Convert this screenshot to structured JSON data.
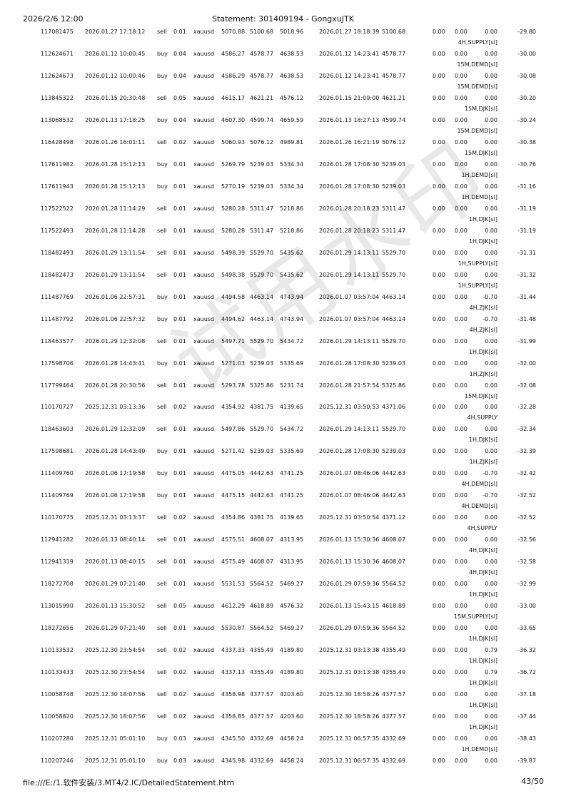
{
  "header": {
    "datetime": "2026/2/6 12:00",
    "title": "Statement: 301409194 - GongxuJTK"
  },
  "footer": {
    "path": "file:///E:/1.软件安装/3.MT4/2.IC/DetailedStatement.htm",
    "page": "43/50"
  },
  "watermark": "试用水印",
  "rows": [
    {
      "ticket": "117081475",
      "open_time": "2026.01.27 17:18:12",
      "type": "sell",
      "size": "0.01",
      "symbol": "xauusd",
      "price": "5070.88",
      "sl": "5100.68",
      "tp": "5018.96",
      "close_time": "2026.01.27 18:18:39",
      "close_price": "5100.68",
      "commission": "0.00",
      "taxes": "0.00",
      "swap": "0.00",
      "profit": "-29.80",
      "comment": "4H,SUPPLY[sl]"
    },
    {
      "ticket": "112624671",
      "open_time": "2026.01.12 10:00:45",
      "type": "buy",
      "size": "0.04",
      "symbol": "xauusd",
      "price": "4586.27",
      "sl": "4578.77",
      "tp": "4638.53",
      "close_time": "2026.01.12 14:23:41",
      "close_price": "4578.77",
      "commission": "0.00",
      "taxes": "0.00",
      "swap": "0.00",
      "profit": "-30.00",
      "comment": "15M,DEMD[sl]"
    },
    {
      "ticket": "112624673",
      "open_time": "2026.01.12 10:00:46",
      "type": "buy",
      "size": "0.04",
      "symbol": "xauusd",
      "price": "4586.29",
      "sl": "4578.77",
      "tp": "4638.53",
      "close_time": "2026.01.12 14:23:41",
      "close_price": "4578.77",
      "commission": "0.00",
      "taxes": "0.00",
      "swap": "0.00",
      "profit": "-30.08",
      "comment": "15M,DEMD[sl]"
    },
    {
      "ticket": "113845322",
      "open_time": "2026.01.15 20:30:48",
      "type": "sell",
      "size": "0.05",
      "symbol": "xauusd",
      "price": "4615.17",
      "sl": "4621.21",
      "tp": "4576.12",
      "close_time": "2026.01.15 21:09:00",
      "close_price": "4621.21",
      "commission": "0.00",
      "taxes": "0.00",
      "swap": "0.00",
      "profit": "-30.20",
      "comment": "15M,DJK[sl]"
    },
    {
      "ticket": "113068532",
      "open_time": "2026.01.13 17:18:25",
      "type": "buy",
      "size": "0.04",
      "symbol": "xauusd",
      "price": "4607.30",
      "sl": "4599.74",
      "tp": "4659.59",
      "close_time": "2026.01.13 18:27:13",
      "close_price": "4599.74",
      "commission": "0.00",
      "taxes": "0.00",
      "swap": "0.00",
      "profit": "-30.24",
      "comment": "15M,DEMD[sl]"
    },
    {
      "ticket": "116428498",
      "open_time": "2026.01.26 16:01:11",
      "type": "sell",
      "size": "0.02",
      "symbol": "xauusd",
      "price": "5060.93",
      "sl": "5076.12",
      "tp": "4989.81",
      "close_time": "2026.01.26 16:21:19",
      "close_price": "5076.12",
      "commission": "0.00",
      "taxes": "0.00",
      "swap": "0.00",
      "profit": "-30.38",
      "comment": "15M,DJK[sl]"
    },
    {
      "ticket": "117611982",
      "open_time": "2026.01.28 15:12:13",
      "type": "buy",
      "size": "0.01",
      "symbol": "xauusd",
      "price": "5269.79",
      "sl": "5239.03",
      "tp": "5334.34",
      "close_time": "2026.01.28 17:08:30",
      "close_price": "5239.03",
      "commission": "0.00",
      "taxes": "0.00",
      "swap": "0.00",
      "profit": "-30.76",
      "comment": "1H,DEMD[sl]"
    },
    {
      "ticket": "117611943",
      "open_time": "2026.01.28 15:12:13",
      "type": "buy",
      "size": "0.01",
      "symbol": "xauusd",
      "price": "5270.19",
      "sl": "5239.03",
      "tp": "5334.34",
      "close_time": "2026.01.28 17:08:30",
      "close_price": "5239.03",
      "commission": "0.00",
      "taxes": "0.00",
      "swap": "0.00",
      "profit": "-31.16",
      "comment": "1H,DEMD[sl]"
    },
    {
      "ticket": "117522522",
      "open_time": "2026.01.28 11:14:29",
      "type": "sell",
      "size": "0.01",
      "symbol": "xauusd",
      "price": "5280.28",
      "sl": "5311.47",
      "tp": "5218.86",
      "close_time": "2026.01.28 20:18:23",
      "close_price": "5311.47",
      "commission": "0.00",
      "taxes": "0.00",
      "swap": "0.00",
      "profit": "-31.19",
      "comment": "1H,DJK[sl]"
    },
    {
      "ticket": "117522493",
      "open_time": "2026.01.28 11:14:28",
      "type": "sell",
      "size": "0.01",
      "symbol": "xauusd",
      "price": "5280.28",
      "sl": "5311.47",
      "tp": "5218.86",
      "close_time": "2026.01.28 20:18:23",
      "close_price": "5311.47",
      "commission": "0.00",
      "taxes": "0.00",
      "swap": "0.00",
      "profit": "-31.19",
      "comment": "1H,DJK[sl]"
    },
    {
      "ticket": "118482493",
      "open_time": "2026.01.29 13:11:54",
      "type": "sell",
      "size": "0.01",
      "symbol": "xauusd",
      "price": "5498.39",
      "sl": "5529.70",
      "tp": "5435.62",
      "close_time": "2026.01.29 14:13:11",
      "close_price": "5529.70",
      "commission": "0.00",
      "taxes": "0.00",
      "swap": "0.00",
      "profit": "-31.31",
      "comment": "1H,SUPPLY[sl]"
    },
    {
      "ticket": "118482473",
      "open_time": "2026.01.29 13:11:54",
      "type": "sell",
      "size": "0.01",
      "symbol": "xauusd",
      "price": "5498.38",
      "sl": "5529.70",
      "tp": "5435.62",
      "close_time": "2026.01.29 14:13:11",
      "close_price": "5529.70",
      "commission": "0.00",
      "taxes": "0.00",
      "swap": "0.00",
      "profit": "-31.32",
      "comment": "1H,SUPPLY[sl]"
    },
    {
      "ticket": "111487769",
      "open_time": "2026.01.06 22:57:31",
      "type": "buy",
      "size": "0.01",
      "symbol": "xauusd",
      "price": "4494.58",
      "sl": "4463.14",
      "tp": "4743.94",
      "close_time": "2026.01.07 03:57:04",
      "close_price": "4463.14",
      "commission": "0.00",
      "taxes": "0.00",
      "swap": "-0.70",
      "profit": "-31.44",
      "comment": "4H,ZJK[sl]"
    },
    {
      "ticket": "111487792",
      "open_time": "2026.01.06 22:57:32",
      "type": "buy",
      "size": "0.01",
      "symbol": "xauusd",
      "price": "4494.62",
      "sl": "4463.14",
      "tp": "4743.94",
      "close_time": "2026.01.07 03:57:04",
      "close_price": "4463.14",
      "commission": "0.00",
      "taxes": "0.00",
      "swap": "-0.70",
      "profit": "-31.48",
      "comment": "4H,ZJK[sl]"
    },
    {
      "ticket": "118463577",
      "open_time": "2026.01.29 12:32:08",
      "type": "sell",
      "size": "0.01",
      "symbol": "xauusd",
      "price": "5497.71",
      "sl": "5529.70",
      "tp": "5434.72",
      "close_time": "2026.01.29 14:13:11",
      "close_price": "5529.70",
      "commission": "0.00",
      "taxes": "0.00",
      "swap": "0.00",
      "profit": "-31.99",
      "comment": "1H,DJK[sl]"
    },
    {
      "ticket": "117598706",
      "open_time": "2026.01.28 14:43:41",
      "type": "buy",
      "size": "0.01",
      "symbol": "xauusd",
      "price": "5271.03",
      "sl": "5239.03",
      "tp": "5335.69",
      "close_time": "2026.01.28 17:08:30",
      "close_price": "5239.03",
      "commission": "0.00",
      "taxes": "0.00",
      "swap": "0.00",
      "profit": "-32.00",
      "comment": "1H,ZJK[sl]"
    },
    {
      "ticket": "117799464",
      "open_time": "2026.01.28 20:30:56",
      "type": "sell",
      "size": "0.01",
      "symbol": "xauusd",
      "price": "5293.78",
      "sl": "5325.86",
      "tp": "5231.74",
      "close_time": "2026.01.28 21:57:54",
      "close_price": "5325.86",
      "commission": "0.00",
      "taxes": "0.00",
      "swap": "0.00",
      "profit": "-32.08",
      "comment": "15M,DJK[sl]"
    },
    {
      "ticket": "110170727",
      "open_time": "2025.12.31 03:13:36",
      "type": "sell",
      "size": "0.02",
      "symbol": "xauusd",
      "price": "4354.92",
      "sl": "4381.75",
      "tp": "4139.65",
      "close_time": "2025.12.31 03:50:53",
      "close_price": "4371.06",
      "commission": "0.00",
      "taxes": "0.00",
      "swap": "0.00",
      "profit": "-32.28",
      "comment": "4H,SUPPLY"
    },
    {
      "ticket": "118463603",
      "open_time": "2026.01.29 12:32:09",
      "type": "sell",
      "size": "0.01",
      "symbol": "xauusd",
      "price": "5497.86",
      "sl": "5529.70",
      "tp": "5434.72",
      "close_time": "2026.01.29 14:13:11",
      "close_price": "5529.70",
      "commission": "0.00",
      "taxes": "0.00",
      "swap": "0.00",
      "profit": "-32.34",
      "comment": "1H,DJK[sl]"
    },
    {
      "ticket": "117598681",
      "open_time": "2026.01.28 14:43:40",
      "type": "buy",
      "size": "0.01",
      "symbol": "xauusd",
      "price": "5271.42",
      "sl": "5239.03",
      "tp": "5335.69",
      "close_time": "2026.01.28 17:08:30",
      "close_price": "5239.03",
      "commission": "0.00",
      "taxes": "0.00",
      "swap": "0.00",
      "profit": "-32.39",
      "comment": "1H,ZJK[sl]"
    },
    {
      "ticket": "111409760",
      "open_time": "2026.01.06 17:19:58",
      "type": "buy",
      "size": "0.01",
      "symbol": "xauusd",
      "price": "4475.05",
      "sl": "4442.63",
      "tp": "4741.25",
      "close_time": "2026.01.07 08:46:06",
      "close_price": "4442.63",
      "commission": "0.00",
      "taxes": "0.00",
      "swap": "-0.70",
      "profit": "-32.42",
      "comment": "4H,DEMD[sl]"
    },
    {
      "ticket": "111409769",
      "open_time": "2026.01.06 17:19:58",
      "type": "buy",
      "size": "0.01",
      "symbol": "xauusd",
      "price": "4475.15",
      "sl": "4442.63",
      "tp": "4741.25",
      "close_time": "2026.01.07 08:46:06",
      "close_price": "4442.63",
      "commission": "0.00",
      "taxes": "0.00",
      "swap": "-0.70",
      "profit": "-32.52",
      "comment": "4H,DEMD[sl]"
    },
    {
      "ticket": "110170775",
      "open_time": "2025.12.31 03:13:37",
      "type": "sell",
      "size": "0.02",
      "symbol": "xauusd",
      "price": "4354.86",
      "sl": "4381.75",
      "tp": "4139.65",
      "close_time": "2025.12.31 03:50:54",
      "close_price": "4371.12",
      "commission": "0.00",
      "taxes": "0.00",
      "swap": "0.00",
      "profit": "-32.52",
      "comment": "4H,SUPPLY"
    },
    {
      "ticket": "112941282",
      "open_time": "2026.01.13 08:40:14",
      "type": "sell",
      "size": "0.01",
      "symbol": "xauusd",
      "price": "4575.51",
      "sl": "4608.07",
      "tp": "4313.95",
      "close_time": "2026.01.13 15:30:36",
      "close_price": "4608.07",
      "commission": "0.00",
      "taxes": "0.00",
      "swap": "0.00",
      "profit": "-32.56",
      "comment": "4H,DJK[sl]"
    },
    {
      "ticket": "112941319",
      "open_time": "2026.01.13 08:40:15",
      "type": "sell",
      "size": "0.01",
      "symbol": "xauusd",
      "price": "4575.49",
      "sl": "4608.07",
      "tp": "4313.95",
      "close_time": "2026.01.13 15:30:36",
      "close_price": "4608.07",
      "commission": "0.00",
      "taxes": "0.00",
      "swap": "0.00",
      "profit": "-32.58",
      "comment": "4H,DJK[sl]"
    },
    {
      "ticket": "118272708",
      "open_time": "2026.01.29 07:21:40",
      "type": "sell",
      "size": "0.01",
      "symbol": "xauusd",
      "price": "5531.53",
      "sl": "5564.52",
      "tp": "5469.27",
      "close_time": "2026.01.29 07:59:36",
      "close_price": "5564.52",
      "commission": "0.00",
      "taxes": "0.00",
      "swap": "0.00",
      "profit": "-32.99",
      "comment": "1H,DJK[sl]"
    },
    {
      "ticket": "113015990",
      "open_time": "2026.01.13 15:30:52",
      "type": "sell",
      "size": "0.05",
      "symbol": "xauusd",
      "price": "4612.29",
      "sl": "4618.89",
      "tp": "4576.32",
      "close_time": "2026.01.13 15:43:15",
      "close_price": "4618.89",
      "commission": "0.00",
      "taxes": "0.00",
      "swap": "0.00",
      "profit": "-33.00",
      "comment": "15M,SUPPLY[sl]"
    },
    {
      "ticket": "118272656",
      "open_time": "2026.01.29 07:21:40",
      "type": "sell",
      "size": "0.01",
      "symbol": "xauusd",
      "price": "5530.87",
      "sl": "5564.52",
      "tp": "5469.27",
      "close_time": "2026.01.29 07:59:36",
      "close_price": "5564.52",
      "commission": "0.00",
      "taxes": "0.00",
      "swap": "0.00",
      "profit": "-33.65",
      "comment": "1H,DJK[sl]"
    },
    {
      "ticket": "110133532",
      "open_time": "2025.12.30 23:54:54",
      "type": "sell",
      "size": "0.02",
      "symbol": "xauusd",
      "price": "4337.33",
      "sl": "4355.49",
      "tp": "4189.80",
      "close_time": "2025.12.31 03:13:38",
      "close_price": "4355.49",
      "commission": "0.00",
      "taxes": "0.00",
      "swap": "0.79",
      "profit": "-36.32",
      "comment": "1H,DJK[sl]"
    },
    {
      "ticket": "110133433",
      "open_time": "2025.12.30 23:54:54",
      "type": "sell",
      "size": "0.02",
      "symbol": "xauusd",
      "price": "4337.13",
      "sl": "4355.49",
      "tp": "4189.80",
      "close_time": "2025.12.31 03:13:38",
      "close_price": "4355.49",
      "commission": "0.00",
      "taxes": "0.00",
      "swap": "0.79",
      "profit": "-36.72",
      "comment": "1H,DJK[sl]"
    },
    {
      "ticket": "110058748",
      "open_time": "2025.12.30 18:07:56",
      "type": "sell",
      "size": "0.02",
      "symbol": "xauusd",
      "price": "4358.98",
      "sl": "4377.57",
      "tp": "4203.60",
      "close_time": "2025.12.30 18:58:26",
      "close_price": "4377.57",
      "commission": "0.00",
      "taxes": "0.00",
      "swap": "0.00",
      "profit": "-37.18",
      "comment": "1H,DJK[sl]"
    },
    {
      "ticket": "110058820",
      "open_time": "2025.12.30 18:07:56",
      "type": "sell",
      "size": "0.02",
      "symbol": "xauusd",
      "price": "4358.85",
      "sl": "4377.57",
      "tp": "4203.60",
      "close_time": "2025.12.30 18:58:26",
      "close_price": "4377.57",
      "commission": "0.00",
      "taxes": "0.00",
      "swap": "0.00",
      "profit": "-37.44",
      "comment": "1H,DJK[sl]"
    },
    {
      "ticket": "110207280",
      "open_time": "2025.12.31 05:01:10",
      "type": "buy",
      "size": "0.03",
      "symbol": "xauusd",
      "price": "4345.50",
      "sl": "4332.69",
      "tp": "4458.24",
      "close_time": "2025.12.31 06:57:35",
      "close_price": "4332.69",
      "commission": "0.00",
      "taxes": "0.00",
      "swap": "0.00",
      "profit": "-38.43",
      "comment": "1H,DEMD[sl]"
    },
    {
      "ticket": "110207246",
      "open_time": "2025.12.31 05:01:10",
      "type": "buy",
      "size": "0.03",
      "symbol": "xauusd",
      "price": "4345.98",
      "sl": "4332.69",
      "tp": "4458.24",
      "close_time": "2025.12.31 06:57:35",
      "close_price": "4332.69",
      "commission": "0.00",
      "taxes": "0.00",
      "swap": "0.00",
      "profit": "-39.87",
      "comment": ""
    }
  ]
}
